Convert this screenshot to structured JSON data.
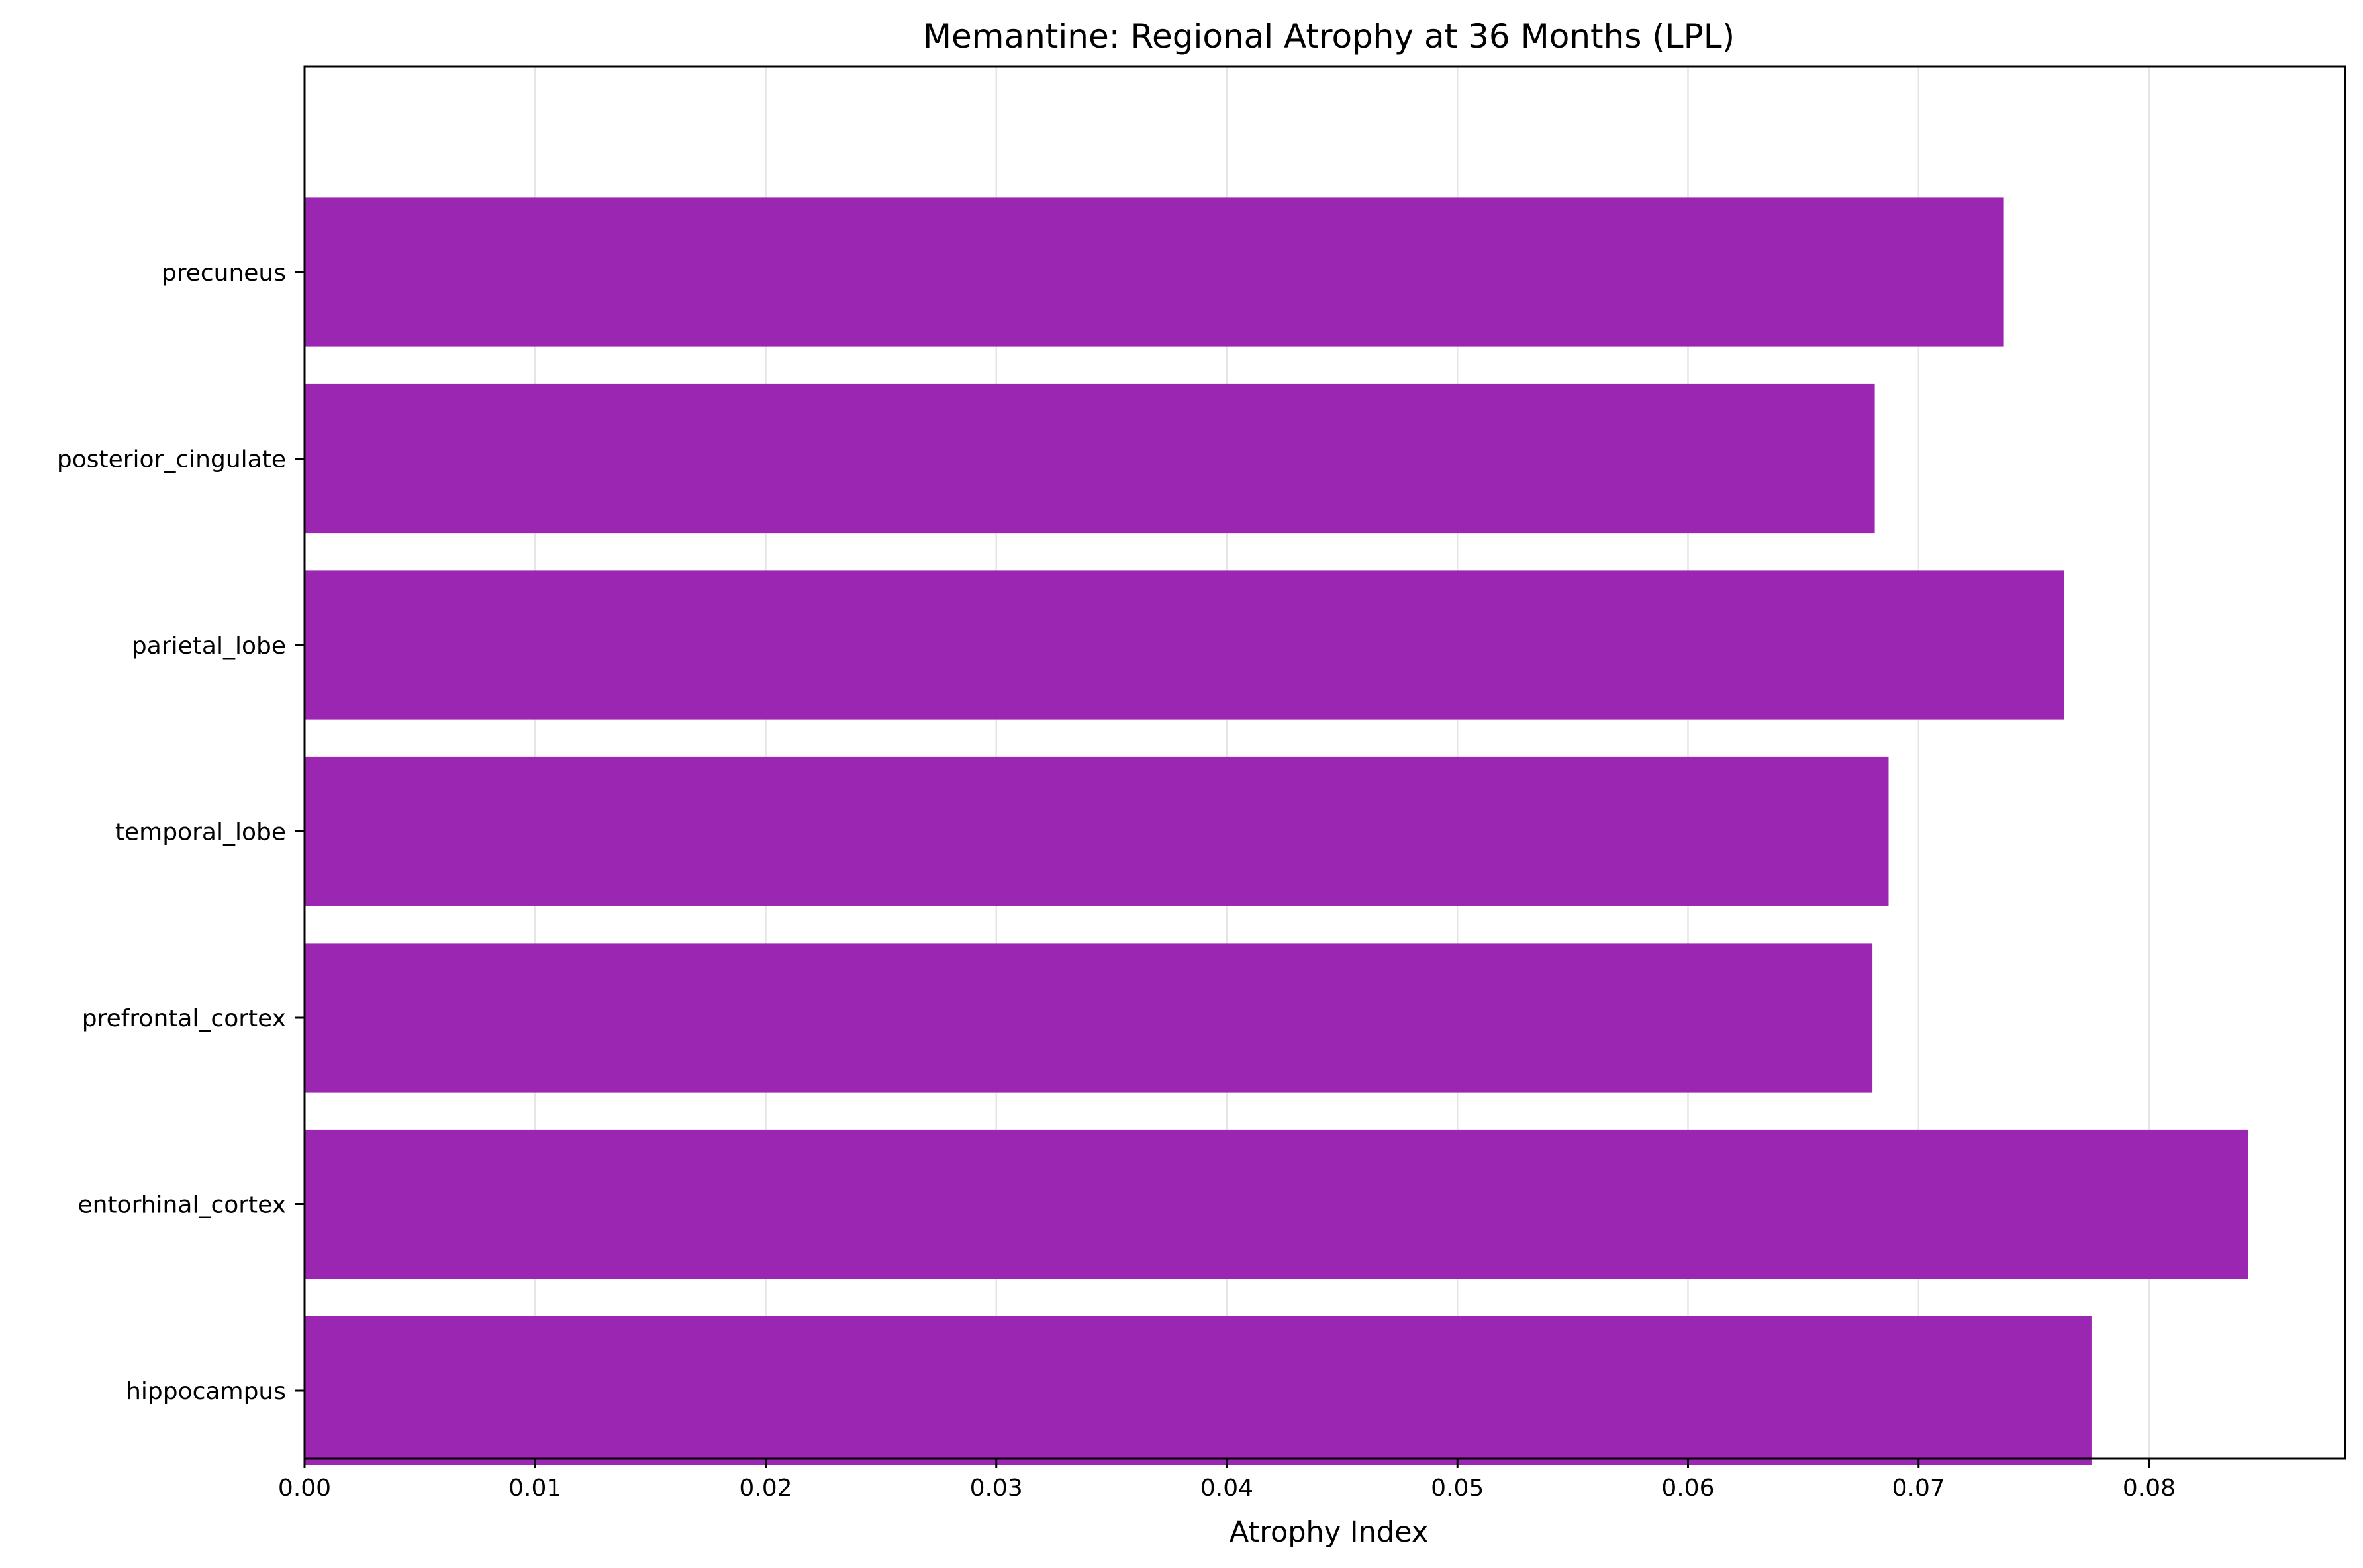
{
  "chart_data": {
    "type": "bar",
    "orientation": "horizontal",
    "title": "Memantine: Regional Atrophy at 36 Months (LPL)",
    "xlabel": "Atrophy Index",
    "ylabel": "",
    "categories": [
      "hippocampus",
      "entorhinal_cortex",
      "prefrontal_cortex",
      "temporal_lobe",
      "parietal_lobe",
      "posterior_cingulate",
      "precuneus"
    ],
    "values": [
      0.0775,
      0.0843,
      0.068,
      0.0687,
      0.0763,
      0.0681,
      0.0737
    ],
    "xlim": [
      0,
      0.0885
    ],
    "xticks": [
      0.0,
      0.01,
      0.02,
      0.03,
      0.04,
      0.05,
      0.06,
      0.07,
      0.08
    ],
    "xtick_labels": [
      "0.00",
      "0.01",
      "0.02",
      "0.03",
      "0.04",
      "0.05",
      "0.06",
      "0.07",
      "0.08"
    ],
    "grid": "x",
    "bar_color": "#9b26b1",
    "grid_color": "#e5e5e5"
  }
}
